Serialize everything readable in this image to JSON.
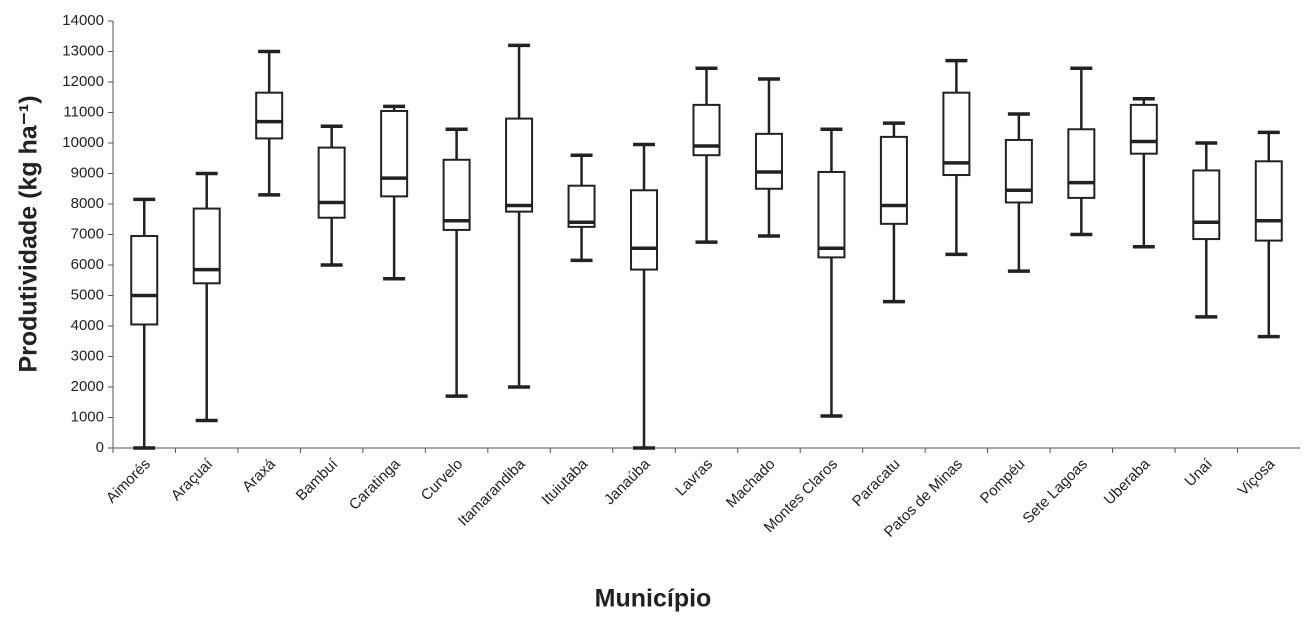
{
  "chart_data": {
    "type": "box",
    "x_label": "Município",
    "y_label": "Produtividade (kg ha⁻¹)",
    "categories": [
      "Aimorés",
      "Araçuaí",
      "Araxá",
      "Bambuí",
      "Caratinga",
      "Curvelo",
      "Itamarandiba",
      "Ituiutaba",
      "Janaúba",
      "Lavras",
      "Machado",
      "Montes Claros",
      "Paracatu",
      "Patos de Minas",
      "Pompéu",
      "Sete Lagoas",
      "Uberaba",
      "Unaí",
      "Viçosa"
    ],
    "boxes": [
      {
        "min": 0,
        "q1": 4050,
        "median": 5000,
        "q3": 6950,
        "max": 8150
      },
      {
        "min": 900,
        "q1": 5400,
        "median": 5850,
        "q3": 7850,
        "max": 9000
      },
      {
        "min": 8300,
        "q1": 10150,
        "median": 10700,
        "q3": 11650,
        "max": 13000
      },
      {
        "min": 6000,
        "q1": 7550,
        "median": 8050,
        "q3": 9850,
        "max": 10550
      },
      {
        "min": 5550,
        "q1": 8250,
        "median": 8850,
        "q3": 11050,
        "max": 11200
      },
      {
        "min": 1700,
        "q1": 7150,
        "median": 7450,
        "q3": 9450,
        "max": 10450
      },
      {
        "min": 2000,
        "q1": 7750,
        "median": 7950,
        "q3": 10800,
        "max": 13200
      },
      {
        "min": 6150,
        "q1": 7250,
        "median": 7400,
        "q3": 8600,
        "max": 9600
      },
      {
        "min": 0,
        "q1": 5850,
        "median": 6550,
        "q3": 8450,
        "max": 9950
      },
      {
        "min": 6750,
        "q1": 9600,
        "median": 9900,
        "q3": 11250,
        "max": 12450
      },
      {
        "min": 6950,
        "q1": 8500,
        "median": 9050,
        "q3": 10300,
        "max": 12100
      },
      {
        "min": 1050,
        "q1": 6250,
        "median": 6550,
        "q3": 9050,
        "max": 10450
      },
      {
        "min": 4800,
        "q1": 7350,
        "median": 7950,
        "q3": 10200,
        "max": 10650
      },
      {
        "min": 6350,
        "q1": 8950,
        "median": 9350,
        "q3": 11650,
        "max": 12700
      },
      {
        "min": 5800,
        "q1": 8050,
        "median": 8450,
        "q3": 10100,
        "max": 10950
      },
      {
        "min": 7000,
        "q1": 8200,
        "median": 8700,
        "q3": 10450,
        "max": 12450
      },
      {
        "min": 6600,
        "q1": 9650,
        "median": 10050,
        "q3": 11250,
        "max": 11450
      },
      {
        "min": 4300,
        "q1": 6850,
        "median": 7400,
        "q3": 9100,
        "max": 10000
      },
      {
        "min": 3650,
        "q1": 6800,
        "median": 7450,
        "q3": 9400,
        "max": 10350
      }
    ],
    "color": "#222222",
    "ylim": [
      0,
      14000
    ],
    "yticks": [
      0,
      1000,
      2000,
      3000,
      4000,
      5000,
      6000,
      7000,
      8000,
      9000,
      10000,
      11000,
      12000,
      13000,
      14000
    ]
  }
}
